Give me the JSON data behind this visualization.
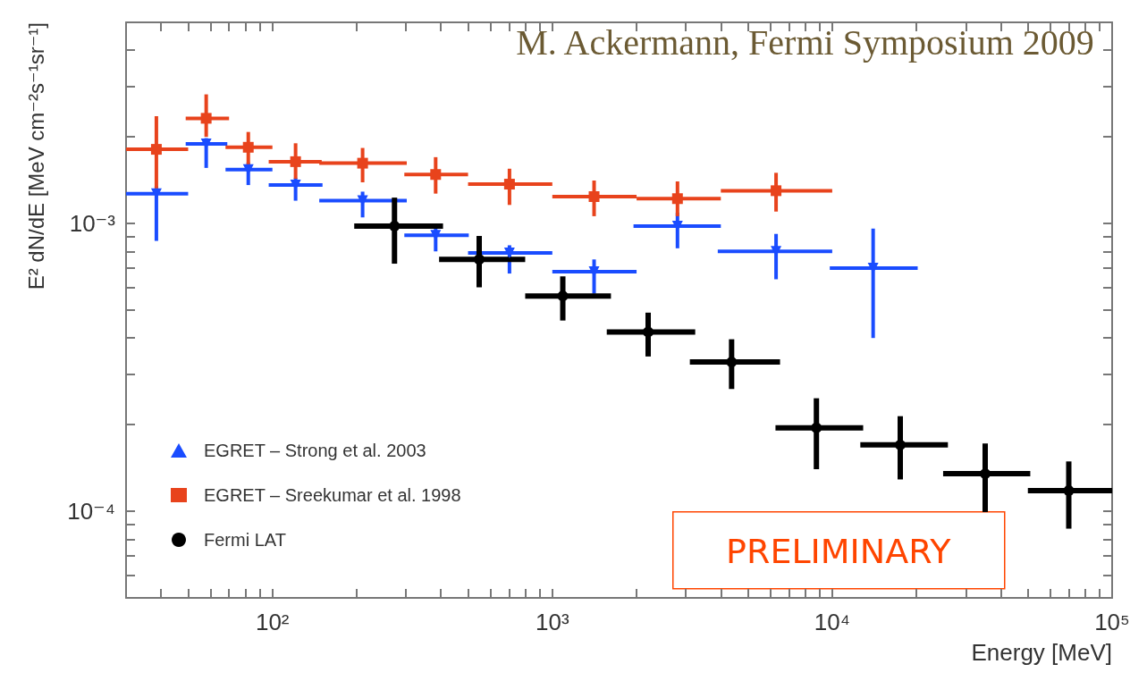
{
  "chart_data": {
    "type": "scatter",
    "ylabel": "E² dN/dE [MeV cm⁻²s⁻¹sr⁻¹]",
    "xlabel": "Energy [MeV]",
    "annotations": [
      "M. Ackermann, Fermi Symposium 2009",
      "PRELIMINARY"
    ],
    "log": "xy",
    "grid": false,
    "legend": "bottom left",
    "xlim": [
      30,
      100000
    ],
    "ylim": [
      5e-05,
      0.005
    ],
    "xticks": [
      {
        "value": 40,
        "label": null
      },
      {
        "value": 50,
        "label": null
      },
      {
        "value": 60,
        "label": null
      },
      {
        "value": 70,
        "label": null
      },
      {
        "value": 80,
        "label": null
      },
      {
        "value": 90,
        "label": null
      },
      {
        "value": 100,
        "label": "10²"
      },
      {
        "value": 200,
        "label": null
      },
      {
        "value": 300,
        "label": null
      },
      {
        "value": 400,
        "label": null
      },
      {
        "value": 500,
        "label": null
      },
      {
        "value": 600,
        "label": null
      },
      {
        "value": 700,
        "label": null
      },
      {
        "value": 800,
        "label": null
      },
      {
        "value": 900,
        "label": null
      },
      {
        "value": 1000,
        "label": "10³"
      },
      {
        "value": 2000,
        "label": null
      },
      {
        "value": 3000,
        "label": null
      },
      {
        "value": 4000,
        "label": null
      },
      {
        "value": 5000,
        "label": null
      },
      {
        "value": 6000,
        "label": null
      },
      {
        "value": 7000,
        "label": null
      },
      {
        "value": 8000,
        "label": null
      },
      {
        "value": 9000,
        "label": null
      },
      {
        "value": 10000,
        "label": "10⁴"
      },
      {
        "value": 20000,
        "label": null
      },
      {
        "value": 30000,
        "label": null
      },
      {
        "value": 40000,
        "label": null
      },
      {
        "value": 50000,
        "label": null
      },
      {
        "value": 60000,
        "label": null
      },
      {
        "value": 70000,
        "label": null
      },
      {
        "value": 80000,
        "label": null
      },
      {
        "value": 90000,
        "label": null
      },
      {
        "value": 100000,
        "label": "10⁵"
      }
    ],
    "yticks": [
      {
        "value": 6e-05,
        "label": null
      },
      {
        "value": 7e-05,
        "label": null
      },
      {
        "value": 8e-05,
        "label": null
      },
      {
        "value": 9e-05,
        "label": null
      },
      {
        "value": 0.0001,
        "label": "10⁻⁴"
      },
      {
        "value": 0.0002,
        "label": null
      },
      {
        "value": 0.0003,
        "label": null
      },
      {
        "value": 0.0004,
        "label": null
      },
      {
        "value": 0.0005,
        "label": null
      },
      {
        "value": 0.0006,
        "label": null
      },
      {
        "value": 0.0007,
        "label": null
      },
      {
        "value": 0.0008,
        "label": null
      },
      {
        "value": 0.0009,
        "label": null
      },
      {
        "value": 0.001,
        "label": "10⁻³"
      },
      {
        "value": 0.002,
        "label": null
      },
      {
        "value": 0.003,
        "label": null
      },
      {
        "value": 0.004,
        "label": null
      }
    ],
    "series": [
      {
        "name": "EGRET – Strong et al. 2003",
        "color": "#1a4cff",
        "marker": "triangle",
        "x": [
          38.5,
          58,
          82,
          121,
          210,
          383,
          703,
          1410,
          2800,
          6300,
          14000
        ],
        "values": [
          0.00127,
          0.00189,
          0.00154,
          0.00136,
          0.0012,
          0.00091,
          0.00079,
          0.00068,
          0.00098,
          0.0008,
          0.0007
        ],
        "xerrors": [
          [
            30,
            50
          ],
          [
            49,
            69
          ],
          [
            68,
            100
          ],
          [
            97,
            151
          ],
          [
            147,
            302
          ],
          [
            296,
            503
          ],
          [
            500,
            1000
          ],
          [
            1000,
            2000
          ],
          [
            1950,
            4000
          ],
          [
            3900,
            10000
          ],
          [
            9800,
            20200
          ]
        ],
        "errors": [
          [
            0.00087,
            0.00135
          ],
          [
            0.00156,
            0.00198
          ],
          [
            0.00136,
            0.00163
          ],
          [
            0.0012,
            0.00144
          ],
          [
            0.00105,
            0.00129
          ],
          [
            0.0008,
            0.001
          ],
          [
            0.00067,
            0.00084
          ],
          [
            0.00057,
            0.00075
          ],
          [
            0.00082,
            0.00109
          ],
          [
            0.00064,
            0.00092
          ],
          [
            0.0004,
            0.00096
          ]
        ]
      },
      {
        "name": "EGRET – Sreekumar et al. 1998",
        "color": "#e8431c",
        "marker": "square",
        "x": [
          38.5,
          58,
          82,
          121,
          210,
          383,
          703,
          1410,
          2800,
          6300
        ],
        "values": [
          0.00181,
          0.00232,
          0.00184,
          0.00164,
          0.00162,
          0.00148,
          0.00137,
          0.00124,
          0.00122,
          0.0013
        ],
        "xerrors": [
          [
            30,
            50
          ],
          [
            49,
            70
          ],
          [
            68,
            100
          ],
          [
            97,
            150
          ],
          [
            147,
            302
          ],
          [
            296,
            500
          ],
          [
            500,
            1000
          ],
          [
            1000,
            2000
          ],
          [
            2000,
            4000
          ],
          [
            4000,
            10000
          ]
        ],
        "errors": [
          [
            0.00127,
            0.00236
          ],
          [
            0.002,
            0.00281
          ],
          [
            0.00158,
            0.00208
          ],
          [
            0.00143,
            0.0019
          ],
          [
            0.00139,
            0.00183
          ],
          [
            0.00127,
            0.0017
          ],
          [
            0.00116,
            0.00155
          ],
          [
            0.00106,
            0.00141
          ],
          [
            0.00106,
            0.0014
          ],
          [
            0.0011,
            0.0015
          ]
        ]
      },
      {
        "name": "Fermi LAT",
        "color": "#000000",
        "marker": "circle",
        "x": [
          273,
          548,
          1090,
          2200,
          4370,
          8780,
          17500,
          35200,
          70000
        ],
        "values": [
          0.00098,
          0.00075,
          0.00056,
          0.00042,
          0.00033,
          0.000195,
          0.00017,
          0.000135,
          0.000118
        ],
        "xerrors": [
          [
            196,
            407
          ],
          [
            394,
            800
          ],
          [
            800,
            1620
          ],
          [
            1565,
            3240
          ],
          [
            3100,
            6510
          ],
          [
            6270,
            12900
          ],
          [
            12600,
            25900
          ],
          [
            24900,
            51000
          ],
          [
            50000,
            100000
          ]
        ],
        "errors": [
          [
            0.000725,
            0.00123
          ],
          [
            0.0006,
            0.000905
          ],
          [
            0.00046,
            0.000655
          ],
          [
            0.000345,
            0.00049
          ],
          [
            0.000266,
            0.000396
          ],
          [
            0.00014,
            0.000247
          ],
          [
            0.000129,
            0.000214
          ],
          [
            9.94e-05,
            0.000172
          ],
          [
            8.7e-05,
            0.000149
          ]
        ]
      }
    ]
  }
}
